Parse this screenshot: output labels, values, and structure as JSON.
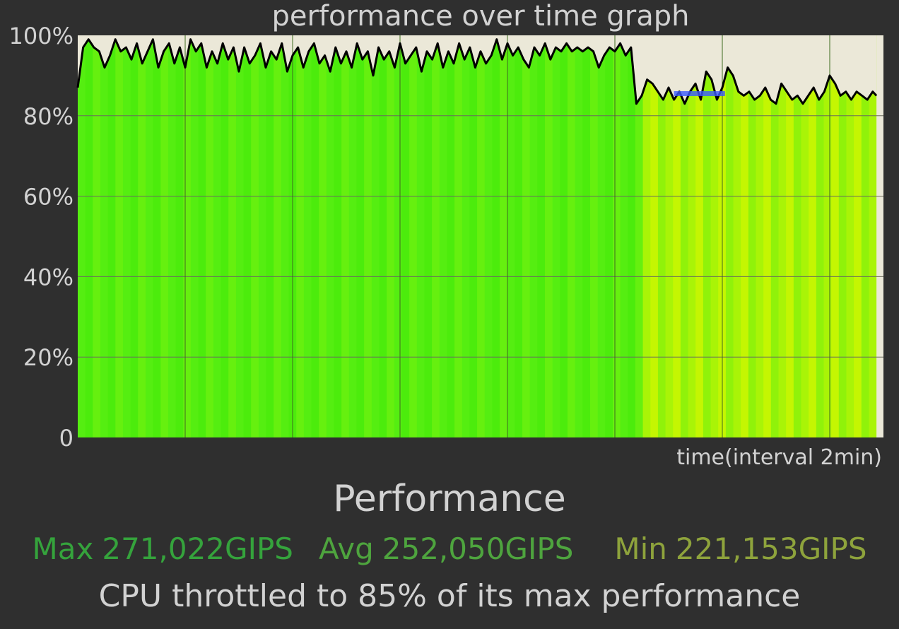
{
  "chart_data": {
    "type": "area",
    "title": "performance over time graph",
    "xlabel": "time(interval 2min)",
    "ylabel": "",
    "ylim": [
      0,
      100
    ],
    "y_ticks": [
      "0",
      "20%",
      "40%",
      "60%",
      "80%",
      "100%"
    ],
    "x_range": [
      0,
      15
    ],
    "x_data_end": 14.87,
    "grid": true,
    "fill_colors": [
      "#55ee11",
      "#4cec0c",
      "#66f00f",
      "#a9f407",
      "#c4f602",
      "#90f20a"
    ],
    "throttle_marker": {
      "value": 85.5,
      "x_start": 11.1,
      "x_end": 12.05,
      "color": "#3b5bff"
    },
    "series": [
      {
        "x": [
          0,
          0.1,
          0.2,
          0.3,
          0.4,
          0.5,
          0.6,
          0.7,
          0.8,
          0.9,
          1.0,
          1.1,
          1.2,
          1.3,
          1.4,
          1.5,
          1.6,
          1.7,
          1.8,
          1.9,
          2.0,
          2.1,
          2.2,
          2.3,
          2.4,
          2.5,
          2.6,
          2.7,
          2.8,
          2.9,
          3.0,
          3.1,
          3.2,
          3.3,
          3.4,
          3.5,
          3.6,
          3.7,
          3.8,
          3.9,
          4.0,
          4.1,
          4.2,
          4.3,
          4.4,
          4.5,
          4.6,
          4.7,
          4.8,
          4.9,
          5.0,
          5.1,
          5.2,
          5.3,
          5.4,
          5.5,
          5.6,
          5.7,
          5.8,
          5.9,
          6.0,
          6.1,
          6.2,
          6.3,
          6.4,
          6.5,
          6.6,
          6.7,
          6.8,
          6.9,
          7.0,
          7.1,
          7.2,
          7.3,
          7.4,
          7.5,
          7.6,
          7.7,
          7.8,
          7.9,
          8.0,
          8.1,
          8.2,
          8.3,
          8.4,
          8.5,
          8.6,
          8.7,
          8.8,
          8.9,
          9.0,
          9.1,
          9.2,
          9.3,
          9.4,
          9.5,
          9.6,
          9.7,
          9.8,
          9.9,
          10.0,
          10.1,
          10.2,
          10.3,
          10.4,
          10.5,
          10.6,
          10.7,
          10.8,
          10.9,
          11.0,
          11.1,
          11.2,
          11.3,
          11.4,
          11.5,
          11.6,
          11.7,
          11.8,
          11.9,
          12.0,
          12.1,
          12.2,
          12.3,
          12.4,
          12.5,
          12.6,
          12.7,
          12.8,
          12.9,
          13.0,
          13.1,
          13.2,
          13.3,
          13.4,
          13.5,
          13.6,
          13.7,
          13.8,
          13.9,
          14.0,
          14.1,
          14.2,
          14.3,
          14.4,
          14.5,
          14.6,
          14.7,
          14.8,
          14.87
        ],
        "y": [
          87,
          97,
          99,
          97,
          96,
          92,
          95,
          99,
          96,
          97,
          94,
          98,
          93,
          96,
          99,
          92,
          96,
          98,
          93,
          97,
          92,
          99,
          96,
          98,
          92,
          96,
          93,
          98,
          94,
          97,
          91,
          97,
          93,
          95,
          98,
          92,
          96,
          94,
          98,
          91,
          95,
          97,
          92,
          96,
          98,
          93,
          95,
          91,
          97,
          93,
          96,
          92,
          98,
          94,
          96,
          90,
          97,
          94,
          96,
          92,
          98,
          93,
          95,
          97,
          91,
          96,
          94,
          98,
          92,
          96,
          93,
          98,
          94,
          97,
          92,
          96,
          93,
          95,
          99,
          94,
          98,
          95,
          97,
          94,
          92,
          97,
          95,
          98,
          94,
          97,
          96,
          98,
          96,
          97,
          96,
          97,
          96,
          92,
          95,
          97,
          96,
          98,
          95,
          97,
          83,
          85,
          89,
          88,
          86,
          84,
          87,
          84,
          86,
          83,
          86,
          88,
          84,
          91,
          89,
          84,
          87,
          92,
          90,
          86,
          85,
          86,
          84,
          85,
          87,
          84,
          83,
          88,
          86,
          84,
          85,
          83,
          85,
          87,
          84,
          86,
          90,
          88,
          85,
          86,
          84,
          86,
          85,
          84,
          86,
          85
        ]
      }
    ]
  },
  "performance_section": {
    "title": "Performance",
    "max_label": "Max",
    "max_value": "271,022GIPS",
    "avg_label": "Avg",
    "avg_value": "252,050GIPS",
    "min_label": "Min",
    "min_value": "221,153GIPS",
    "throttle_message": "CPU throttled to 85% of its max performance"
  }
}
